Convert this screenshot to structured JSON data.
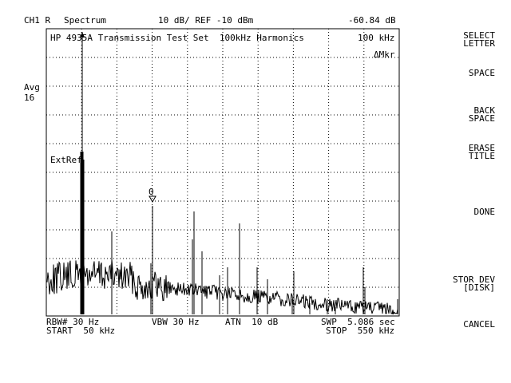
{
  "header": {
    "channel": "CH1 R",
    "mode": "Spectrum",
    "scale": "10 dB/ REF -10 dBm",
    "marker_readout": "-60.84 dB"
  },
  "plot": {
    "title": "HP 4935A Transmission Test Set  100kHz Harmonics",
    "marker_freq": "100 kHz",
    "delta_marker": "ΔMkr",
    "ext_ref": "ExtRef",
    "marker_number": "0",
    "grid_divisions": {
      "x": 10,
      "y": 10
    },
    "trace_color": "#000000"
  },
  "left_panel": {
    "avg_label": "Avg",
    "avg_count": "16"
  },
  "footer": {
    "rbw": "RBW# 30 Hz",
    "vbw": "VBW 30 Hz",
    "atn": "ATN  10 dB",
    "swp": "SWP  5.086 sec",
    "start": "START  50 kHz",
    "stop": "STOP  550 kHz"
  },
  "softkeys": [
    "SELECT\nLETTER",
    "SPACE",
    "BACK\nSPACE",
    "ERASE\nTITLE",
    "DONE",
    "STOR DEV\n[DISK]",
    "CANCEL"
  ]
}
